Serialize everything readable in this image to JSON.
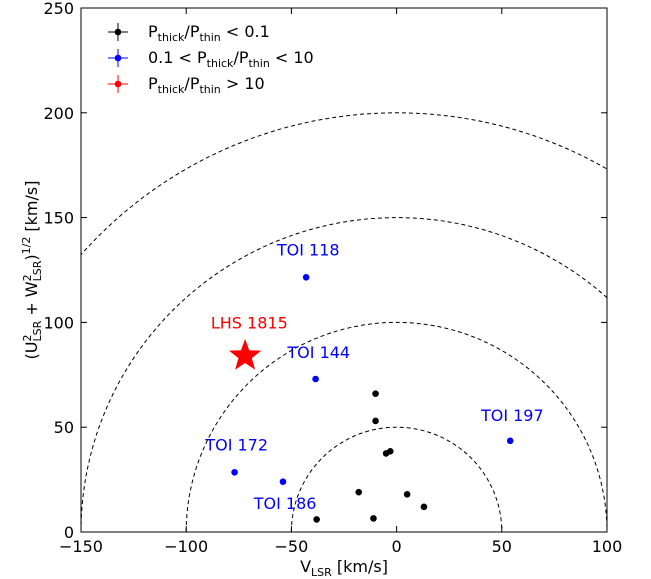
{
  "chart_data": {
    "type": "scatter",
    "xlabel": {
      "main": "V",
      "sub": "LSR",
      "rest": " [km/s]"
    },
    "ylabel": "(U²LSR + W²LSR)1/2 [km/s]",
    "xlim": [
      -150,
      100
    ],
    "ylim": [
      0,
      250
    ],
    "xticks": [
      -150,
      -100,
      -50,
      0,
      50,
      100
    ],
    "xtick_labels": [
      "−150",
      "−100",
      "−50",
      "0",
      "50",
      "100"
    ],
    "yticks": [
      0,
      50,
      100,
      150,
      200,
      250
    ],
    "ytick_labels": [
      "0",
      "50",
      "100",
      "150",
      "200",
      "250"
    ],
    "grid": false,
    "legend_position": "top-left",
    "guide_circles": [
      50,
      100,
      150,
      200
    ],
    "series": [
      {
        "name": "Pthick/Pthin < 0.1",
        "legend": {
          "base": "P",
          "sub1": "thick",
          "mid": "/P",
          "sub2": "thin",
          "tail": " < 0.1"
        },
        "color": "#000000",
        "marker": "dot",
        "points": [
          {
            "x": -38,
            "y": 6
          },
          {
            "x": -11,
            "y": 6.5
          },
          {
            "x": -18,
            "y": 19
          },
          {
            "x": 5,
            "y": 18
          },
          {
            "x": 13,
            "y": 12
          },
          {
            "x": -5,
            "y": 37.5
          },
          {
            "x": -3,
            "y": 38.5
          },
          {
            "x": -10,
            "y": 53
          },
          {
            "x": -10,
            "y": 66
          }
        ]
      },
      {
        "name": "0.1 < Pthick/Pthin < 10",
        "legend": {
          "base": "0.1 < P",
          "sub1": "thick",
          "mid": "/P",
          "sub2": "thin",
          "tail": " < 10"
        },
        "color": "#0000ff",
        "marker": "dot",
        "points": [
          {
            "x": -43,
            "y": 121.5,
            "label": "TOI 118"
          },
          {
            "x": -38.5,
            "y": 73,
            "label": "TOI 144"
          },
          {
            "x": -77,
            "y": 28.5,
            "label": "TOI 172"
          },
          {
            "x": -54,
            "y": 24,
            "label": "TOI 186"
          },
          {
            "x": 54,
            "y": 43.5,
            "label": "TOI 197"
          }
        ]
      },
      {
        "name": "Pthick/Pthin > 10",
        "legend": {
          "base": "P",
          "sub1": "thick",
          "mid": "/P",
          "sub2": "thin",
          "tail": " > 10"
        },
        "color": "#ff0000",
        "marker": "star",
        "points": [
          {
            "x": -72,
            "y": 84,
            "label": "LHS 1815"
          }
        ]
      }
    ],
    "annotations": [
      {
        "text": "TOI 118",
        "color": "#0000ff",
        "x": -42,
        "y": 132
      },
      {
        "text": "TOI 144",
        "color": "#0000ff",
        "x": -37,
        "y": 83
      },
      {
        "text": "TOI 172",
        "color": "#0000ff",
        "x": -76,
        "y": 39
      },
      {
        "text": "TOI 186",
        "color": "#0000ff",
        "x": -53,
        "y": 11
      },
      {
        "text": "TOI 197",
        "color": "#0000ff",
        "x": 55,
        "y": 53
      },
      {
        "text": "LHS 1815",
        "color": "#ff0000",
        "x": -70,
        "y": 97
      }
    ]
  }
}
